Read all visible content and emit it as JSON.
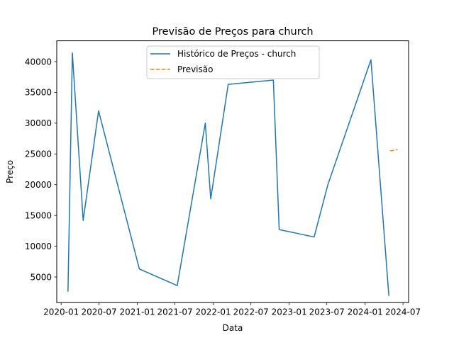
{
  "chart_data": {
    "type": "line",
    "title": "Previsão de Preços para church",
    "xlabel": "Data",
    "ylabel": "Preço",
    "x_ticks": [
      "2020-01",
      "2020-07",
      "2021-01",
      "2021-07",
      "2022-01",
      "2022-07",
      "2023-01",
      "2023-07",
      "2024-01",
      "2024-07"
    ],
    "y_ticks": [
      5000,
      10000,
      15000,
      20000,
      25000,
      30000,
      35000,
      40000
    ],
    "xlim": [
      "2019-12-11",
      "2024-07-28"
    ],
    "ylim": [
      836,
      43384
    ],
    "grid": false,
    "legend_position": "top-center",
    "series": [
      {
        "name": "Histórico de Preços - church",
        "color": "#1f77b4",
        "style": "solid",
        "points": [
          {
            "x": "2020-02-03",
            "y": 2700
          },
          {
            "x": "2020-02-24",
            "y": 41400
          },
          {
            "x": "2020-04-16",
            "y": 14200
          },
          {
            "x": "2020-06-29",
            "y": 32000
          },
          {
            "x": "2021-01-11",
            "y": 6300
          },
          {
            "x": "2021-07-12",
            "y": 3600
          },
          {
            "x": "2021-11-24",
            "y": 30000
          },
          {
            "x": "2021-12-20",
            "y": 17700
          },
          {
            "x": "2022-03-14",
            "y": 36300
          },
          {
            "x": "2022-10-17",
            "y": 37000
          },
          {
            "x": "2022-11-14",
            "y": 12700
          },
          {
            "x": "2023-05-01",
            "y": 11500
          },
          {
            "x": "2023-07-06",
            "y": 20000
          },
          {
            "x": "2024-01-29",
            "y": 40300
          },
          {
            "x": "2024-04-24",
            "y": 2000
          }
        ]
      },
      {
        "name": "Previsão",
        "color": "#ff7f0e",
        "style": "dashed",
        "points": [
          {
            "x": "2024-05-01",
            "y": 25500
          },
          {
            "x": "2024-06-05",
            "y": 25700
          }
        ]
      }
    ]
  }
}
